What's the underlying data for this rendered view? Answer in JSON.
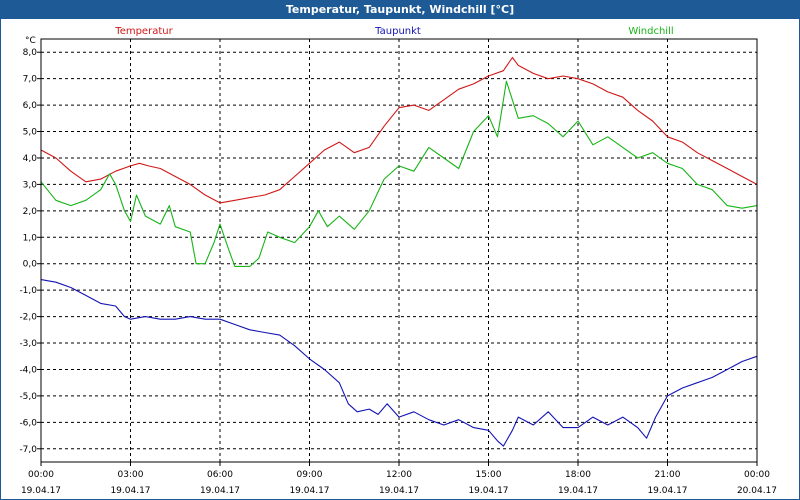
{
  "window": {
    "title": "Temperatur, Taupunkt, Windchill [°C]"
  },
  "chart_data": {
    "type": "line",
    "title": "Temperatur, Taupunkt, Windchill [°C]",
    "y_unit": "°C",
    "ylim": [
      -7.5,
      8.5
    ],
    "y_ticks": [
      "8,0",
      "7,0",
      "6,0",
      "5,0",
      "4,0",
      "3,0",
      "2,0",
      "1,0",
      "0,0",
      "-1,0",
      "-2,0",
      "-3,0",
      "-4,0",
      "-5,0",
      "-6,0",
      "-7,0"
    ],
    "y_tick_values": [
      8,
      7,
      6,
      5,
      4,
      3,
      2,
      1,
      0,
      -1,
      -2,
      -3,
      -4,
      -5,
      -6,
      -7
    ],
    "x_range_hours": [
      0,
      24
    ],
    "x_ticks": [
      {
        "time": "00:00",
        "date": "19.04.17"
      },
      {
        "time": "03:00",
        "date": "19.04.17"
      },
      {
        "time": "06:00",
        "date": "19.04.17"
      },
      {
        "time": "09:00",
        "date": "19.04.17"
      },
      {
        "time": "12:00",
        "date": "19.04.17"
      },
      {
        "time": "15:00",
        "date": "19.04.17"
      },
      {
        "time": "18:00",
        "date": "19.04.17"
      },
      {
        "time": "21:00",
        "date": "19.04.17"
      },
      {
        "time": "00:00",
        "date": "20.04.17"
      }
    ],
    "grid": true,
    "legend_position": "top",
    "series": [
      {
        "name": "Temperatur",
        "color": "#d01818",
        "points": [
          [
            0,
            4.3
          ],
          [
            0.5,
            4.0
          ],
          [
            1.0,
            3.5
          ],
          [
            1.5,
            3.1
          ],
          [
            2.0,
            3.2
          ],
          [
            2.5,
            3.5
          ],
          [
            3.0,
            3.7
          ],
          [
            3.3,
            3.8
          ],
          [
            3.6,
            3.7
          ],
          [
            4.0,
            3.6
          ],
          [
            4.5,
            3.3
          ],
          [
            5.0,
            3.0
          ],
          [
            5.5,
            2.6
          ],
          [
            6.0,
            2.3
          ],
          [
            6.5,
            2.4
          ],
          [
            7.0,
            2.5
          ],
          [
            7.5,
            2.6
          ],
          [
            8.0,
            2.8
          ],
          [
            8.5,
            3.3
          ],
          [
            9.0,
            3.8
          ],
          [
            9.5,
            4.3
          ],
          [
            10.0,
            4.6
          ],
          [
            10.5,
            4.2
          ],
          [
            11.0,
            4.4
          ],
          [
            11.5,
            5.2
          ],
          [
            12.0,
            5.9
          ],
          [
            12.5,
            6.0
          ],
          [
            13.0,
            5.8
          ],
          [
            13.5,
            6.2
          ],
          [
            14.0,
            6.6
          ],
          [
            14.5,
            6.8
          ],
          [
            15.0,
            7.1
          ],
          [
            15.5,
            7.3
          ],
          [
            15.8,
            7.8
          ],
          [
            16.0,
            7.5
          ],
          [
            16.5,
            7.2
          ],
          [
            17.0,
            7.0
          ],
          [
            17.5,
            7.1
          ],
          [
            18.0,
            7.0
          ],
          [
            18.5,
            6.8
          ],
          [
            19.0,
            6.5
          ],
          [
            19.5,
            6.3
          ],
          [
            20.0,
            5.8
          ],
          [
            20.5,
            5.4
          ],
          [
            21.0,
            4.8
          ],
          [
            21.5,
            4.6
          ],
          [
            22.0,
            4.2
          ],
          [
            22.5,
            3.9
          ],
          [
            23.0,
            3.6
          ],
          [
            23.5,
            3.3
          ],
          [
            24.0,
            3.0
          ]
        ]
      },
      {
        "name": "Taupunkt",
        "color": "#1414b4",
        "points": [
          [
            0,
            -0.6
          ],
          [
            0.5,
            -0.7
          ],
          [
            1.0,
            -0.9
          ],
          [
            1.5,
            -1.2
          ],
          [
            2.0,
            -1.5
          ],
          [
            2.5,
            -1.6
          ],
          [
            2.8,
            -2.0
          ],
          [
            3.0,
            -2.1
          ],
          [
            3.5,
            -2.0
          ],
          [
            4.0,
            -2.1
          ],
          [
            4.5,
            -2.1
          ],
          [
            5.0,
            -2.0
          ],
          [
            5.5,
            -2.1
          ],
          [
            6.0,
            -2.1
          ],
          [
            6.5,
            -2.3
          ],
          [
            7.0,
            -2.5
          ],
          [
            7.5,
            -2.6
          ],
          [
            8.0,
            -2.7
          ],
          [
            8.5,
            -3.1
          ],
          [
            9.0,
            -3.6
          ],
          [
            9.5,
            -4.0
          ],
          [
            10.0,
            -4.5
          ],
          [
            10.3,
            -5.3
          ],
          [
            10.6,
            -5.6
          ],
          [
            11.0,
            -5.5
          ],
          [
            11.3,
            -5.7
          ],
          [
            11.6,
            -5.3
          ],
          [
            12.0,
            -5.8
          ],
          [
            12.5,
            -5.6
          ],
          [
            13.0,
            -5.9
          ],
          [
            13.5,
            -6.1
          ],
          [
            14.0,
            -5.9
          ],
          [
            14.5,
            -6.2
          ],
          [
            15.0,
            -6.3
          ],
          [
            15.3,
            -6.7
          ],
          [
            15.5,
            -6.9
          ],
          [
            15.8,
            -6.3
          ],
          [
            16.0,
            -5.8
          ],
          [
            16.5,
            -6.1
          ],
          [
            17.0,
            -5.6
          ],
          [
            17.5,
            -6.2
          ],
          [
            18.0,
            -6.2
          ],
          [
            18.5,
            -5.8
          ],
          [
            19.0,
            -6.1
          ],
          [
            19.5,
            -5.8
          ],
          [
            20.0,
            -6.2
          ],
          [
            20.3,
            -6.6
          ],
          [
            20.6,
            -5.8
          ],
          [
            21.0,
            -5.0
          ],
          [
            21.5,
            -4.7
          ],
          [
            22.0,
            -4.5
          ],
          [
            22.5,
            -4.3
          ],
          [
            23.0,
            -4.0
          ],
          [
            23.5,
            -3.7
          ],
          [
            24.0,
            -3.5
          ]
        ]
      },
      {
        "name": "Windchill",
        "color": "#18b418",
        "points": [
          [
            0,
            3.1
          ],
          [
            0.5,
            2.4
          ],
          [
            1.0,
            2.2
          ],
          [
            1.5,
            2.4
          ],
          [
            2.0,
            2.8
          ],
          [
            2.3,
            3.4
          ],
          [
            2.5,
            3.0
          ],
          [
            2.8,
            2.0
          ],
          [
            3.0,
            1.6
          ],
          [
            3.2,
            2.6
          ],
          [
            3.5,
            1.8
          ],
          [
            4.0,
            1.5
          ],
          [
            4.3,
            2.2
          ],
          [
            4.5,
            1.4
          ],
          [
            5.0,
            1.2
          ],
          [
            5.2,
            0.0
          ],
          [
            5.5,
            0.0
          ],
          [
            5.8,
            0.8
          ],
          [
            6.0,
            1.5
          ],
          [
            6.3,
            0.5
          ],
          [
            6.5,
            -0.1
          ],
          [
            7.0,
            -0.1
          ],
          [
            7.3,
            0.2
          ],
          [
            7.6,
            1.2
          ],
          [
            8.0,
            1.0
          ],
          [
            8.5,
            0.8
          ],
          [
            9.0,
            1.4
          ],
          [
            9.3,
            2.0
          ],
          [
            9.6,
            1.4
          ],
          [
            10.0,
            1.8
          ],
          [
            10.5,
            1.3
          ],
          [
            11.0,
            2.0
          ],
          [
            11.5,
            3.2
          ],
          [
            12.0,
            3.7
          ],
          [
            12.5,
            3.5
          ],
          [
            13.0,
            4.4
          ],
          [
            13.5,
            4.0
          ],
          [
            14.0,
            3.6
          ],
          [
            14.5,
            5.0
          ],
          [
            15.0,
            5.6
          ],
          [
            15.3,
            4.8
          ],
          [
            15.6,
            6.9
          ],
          [
            16.0,
            5.5
          ],
          [
            16.5,
            5.6
          ],
          [
            17.0,
            5.3
          ],
          [
            17.5,
            4.8
          ],
          [
            18.0,
            5.4
          ],
          [
            18.5,
            4.5
          ],
          [
            19.0,
            4.8
          ],
          [
            19.5,
            4.4
          ],
          [
            20.0,
            4.0
          ],
          [
            20.5,
            4.2
          ],
          [
            21.0,
            3.8
          ],
          [
            21.5,
            3.6
          ],
          [
            22.0,
            3.0
          ],
          [
            22.5,
            2.8
          ],
          [
            23.0,
            2.2
          ],
          [
            23.5,
            2.1
          ],
          [
            24.0,
            2.2
          ]
        ]
      }
    ]
  }
}
